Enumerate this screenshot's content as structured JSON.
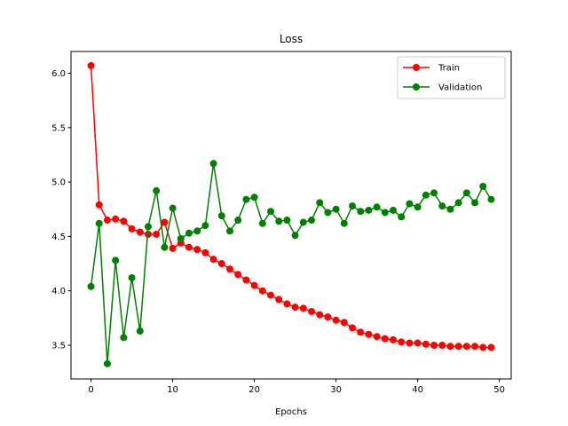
{
  "chart_data": {
    "type": "line",
    "title": "Loss",
    "xlabel": "Epochs",
    "ylabel": "",
    "xlim": [
      -2.45,
      51.45
    ],
    "ylim": [
      3.19,
      6.2
    ],
    "xticks": [
      0,
      10,
      20,
      30,
      40,
      50
    ],
    "yticks": [
      3.5,
      4.0,
      4.5,
      5.0,
      5.5,
      6.0
    ],
    "ytick_labels": [
      "3.5",
      "4.0",
      "4.5",
      "5.0",
      "5.5",
      "6.0"
    ],
    "grid": false,
    "legend_position": "top-right",
    "x": [
      0,
      1,
      2,
      3,
      4,
      5,
      6,
      7,
      8,
      9,
      10,
      11,
      12,
      13,
      14,
      15,
      16,
      17,
      18,
      19,
      20,
      21,
      22,
      23,
      24,
      25,
      26,
      27,
      28,
      29,
      30,
      31,
      32,
      33,
      34,
      35,
      36,
      37,
      38,
      39,
      40,
      41,
      42,
      43,
      44,
      45,
      46,
      47,
      48,
      49
    ],
    "series": [
      {
        "name": "Train",
        "color": "#ff0000",
        "values": [
          6.07,
          4.79,
          4.65,
          4.66,
          4.64,
          4.57,
          4.54,
          4.52,
          4.52,
          4.63,
          4.39,
          4.44,
          4.4,
          4.38,
          4.35,
          4.29,
          4.25,
          4.2,
          4.15,
          4.1,
          4.05,
          4.0,
          3.96,
          3.92,
          3.88,
          3.85,
          3.84,
          3.81,
          3.78,
          3.76,
          3.73,
          3.71,
          3.66,
          3.62,
          3.6,
          3.58,
          3.56,
          3.55,
          3.53,
          3.52,
          3.52,
          3.51,
          3.5,
          3.5,
          3.49,
          3.49,
          3.49,
          3.49,
          3.48,
          3.48
        ]
      },
      {
        "name": "Validation",
        "color": "#008000",
        "values": [
          4.04,
          4.62,
          3.33,
          4.28,
          3.57,
          4.12,
          3.63,
          4.59,
          4.92,
          4.4,
          4.76,
          4.48,
          4.53,
          4.55,
          4.6,
          5.17,
          4.69,
          4.55,
          4.65,
          4.84,
          4.86,
          4.62,
          4.73,
          4.64,
          4.65,
          4.51,
          4.63,
          4.65,
          4.81,
          4.72,
          4.75,
          4.62,
          4.78,
          4.73,
          4.74,
          4.77,
          4.72,
          4.74,
          4.68,
          4.8,
          4.77,
          4.88,
          4.9,
          4.78,
          4.75,
          4.81,
          4.9,
          4.81,
          4.96,
          4.84
        ]
      }
    ]
  }
}
